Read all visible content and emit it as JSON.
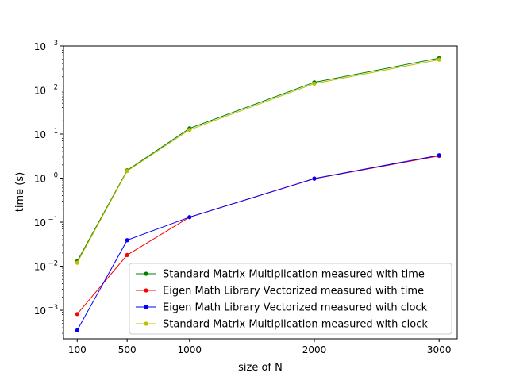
{
  "chart_data": {
    "type": "line",
    "title": "",
    "xlabel": "size of N",
    "ylabel": "time (s)",
    "x": [
      100,
      500,
      1000,
      2000,
      3000
    ],
    "x_ticks": [
      "100",
      "500",
      "1000",
      "2000",
      "3000"
    ],
    "xlim": [
      -10,
      3145
    ],
    "y_scale": "log",
    "ylim": [
      0.000225,
      1000
    ],
    "y_ticks": [
      {
        "value": 0.001,
        "base": "10",
        "exp": "−3"
      },
      {
        "value": 0.01,
        "base": "10",
        "exp": "−2"
      },
      {
        "value": 0.1,
        "base": "10",
        "exp": "−1"
      },
      {
        "value": 1,
        "base": "10",
        "exp": "0"
      },
      {
        "value": 10,
        "base": "10",
        "exp": "1"
      },
      {
        "value": 100,
        "base": "10",
        "exp": "2"
      },
      {
        "value": 1000,
        "base": "10",
        "exp": "3"
      }
    ],
    "grid": false,
    "legend_position": "lower-right",
    "series": [
      {
        "name": "Standard Matrix Multiplication measured with time",
        "color": "#008000",
        "values": [
          0.013,
          1.5,
          13.5,
          150,
          530
        ]
      },
      {
        "name": "Eigen Math Library Vectorized measured with time",
        "color": "#ff0000",
        "values": [
          0.00082,
          0.018,
          0.13,
          0.97,
          3.2
        ]
      },
      {
        "name": "Eigen Math Library Vectorized measured with clock",
        "color": "#0000ff",
        "values": [
          0.00035,
          0.039,
          0.13,
          0.98,
          3.3
        ]
      },
      {
        "name": "Standard Matrix Multiplication measured with clock",
        "color": "#bfbf00",
        "values": [
          0.012,
          1.45,
          12.5,
          140,
          490
        ]
      }
    ]
  }
}
